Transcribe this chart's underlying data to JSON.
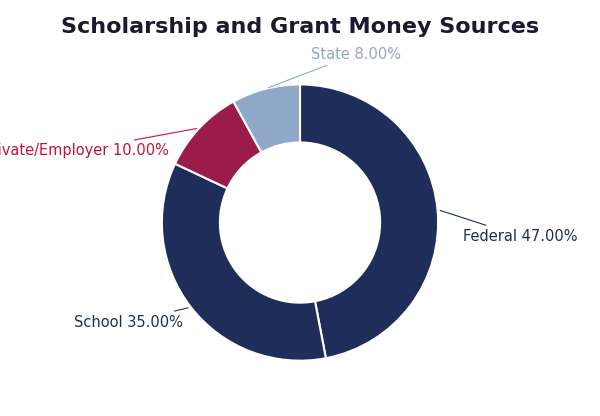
{
  "title": "Scholarship and Grant Money Sources",
  "title_fontsize": 16,
  "title_fontweight": "bold",
  "title_color": "#1a1a2e",
  "slices": [
    {
      "label": "Federal",
      "value": 47.0,
      "color": "#1e2d5a"
    },
    {
      "label": "School",
      "value": 35.0,
      "color": "#1e2d5a"
    },
    {
      "label": "Private/Employer",
      "value": 10.0,
      "color": "#9b1b4b"
    },
    {
      "label": "State",
      "value": 8.0,
      "color": "#8fa8c8"
    }
  ],
  "label_colors": {
    "Federal": "#1e2d5a",
    "School": "#1e2d5a",
    "Private/Employer": "#c0143c",
    "State": "#8fa8c8"
  },
  "label_fontsize": 10.5,
  "wedge_edge_color": "white",
  "wedge_edge_width": 1.5,
  "donut_width": 0.42,
  "background_color": "#ffffff",
  "start_angle": 90,
  "counterclock": false
}
